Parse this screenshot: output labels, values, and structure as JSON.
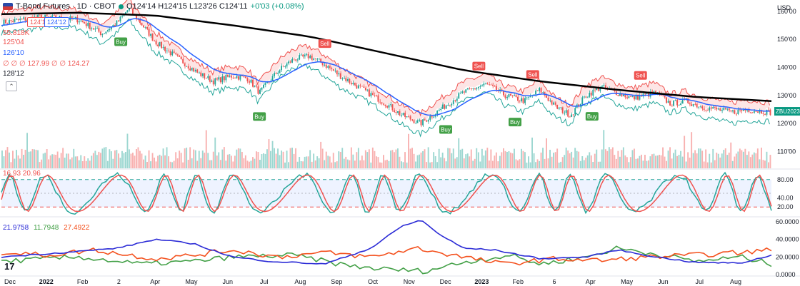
{
  "header": {
    "symbol": "T-Bond Futures · 1D · CBOT",
    "ohlc": "O124'14 H124'15 L123'26 C124'11",
    "change": "+0'03 (+0.08%)",
    "bid_label": "124'11",
    "ask_label": "124'12"
  },
  "legend": {
    "volume": "55.818K",
    "line1": "125'04",
    "line2": "126'10",
    "ichimoku": "∅ ∅ ∅ 127.99 ∅ ∅ 124.27",
    "line3": "128'12"
  },
  "stoch_legend": "16.93 20.96",
  "dmi_legend": [
    "21.9758",
    "11.7948",
    "27.4922"
  ],
  "colors": {
    "up": "#26a69a",
    "down": "#ef5350",
    "sma": "#000000",
    "ema": "#2962ff",
    "trail": "#ef5350",
    "support": "#26a69a",
    "buy": "#43a047",
    "sell": "#ef5350",
    "dmi_plus": "#43a047",
    "dmi_minus": "#f4511e",
    "adx": "#2a2ad6"
  },
  "chart_data": {
    "type": "candlestick",
    "main": {
      "currency": "USD",
      "y_ticks": [
        "160'00",
        "150'00",
        "140'00",
        "130'00",
        "120'00",
        "110'00"
      ],
      "ylim": [
        104,
        162
      ],
      "symbol_tag": "ZBU2023",
      "last_value": 124.34,
      "price_path": [
        [
          0,
          156
        ],
        [
          0.05,
          158
        ],
        [
          0.1,
          157
        ],
        [
          0.13,
          152
        ],
        [
          0.15,
          156
        ],
        [
          0.165,
          161
        ],
        [
          0.18,
          156
        ],
        [
          0.2,
          149
        ],
        [
          0.23,
          143
        ],
        [
          0.255,
          138
        ],
        [
          0.275,
          135
        ],
        [
          0.3,
          137
        ],
        [
          0.32,
          136
        ],
        [
          0.335,
          131
        ],
        [
          0.36,
          139
        ],
        [
          0.38,
          143
        ],
        [
          0.4,
          144
        ],
        [
          0.42,
          141
        ],
        [
          0.44,
          137
        ],
        [
          0.47,
          132
        ],
        [
          0.5,
          127
        ],
        [
          0.52,
          123
        ],
        [
          0.545,
          120
        ],
        [
          0.57,
          125
        ],
        [
          0.6,
          131
        ],
        [
          0.63,
          134
        ],
        [
          0.655,
          130
        ],
        [
          0.68,
          128
        ],
        [
          0.7,
          132
        ],
        [
          0.72,
          126
        ],
        [
          0.74,
          123
        ],
        [
          0.76,
          130
        ],
        [
          0.78,
          133
        ],
        [
          0.8,
          131
        ],
        [
          0.82,
          129
        ],
        [
          0.85,
          131
        ],
        [
          0.87,
          127
        ],
        [
          0.89,
          128
        ],
        [
          0.91,
          126
        ],
        [
          0.93,
          125
        ],
        [
          0.95,
          124
        ],
        [
          0.97,
          125
        ],
        [
          1,
          124
        ]
      ],
      "sma200_path": [
        [
          0,
          159
        ],
        [
          0.1,
          159.5
        ],
        [
          0.2,
          158.5
        ],
        [
          0.3,
          155
        ],
        [
          0.4,
          151
        ],
        [
          0.5,
          145
        ],
        [
          0.6,
          139
        ],
        [
          0.7,
          135
        ],
        [
          0.8,
          132
        ],
        [
          0.9,
          129.5
        ],
        [
          1,
          128
        ]
      ],
      "buy_signals": [
        0.155,
        0.335,
        0.577,
        0.667,
        0.767
      ],
      "sell_signals": [
        0.17,
        0.42,
        0.62,
        0.69,
        0.83
      ]
    },
    "stochastic": {
      "y_ticks": [
        "80.00",
        "40.00",
        "20.00"
      ],
      "ylim": [
        0,
        100
      ],
      "upper_band": 80,
      "lower_band": 20
    },
    "dmi": {
      "y_ticks": [
        "60.0000",
        "40.0000",
        "20.0000",
        "0.0000"
      ],
      "ylim": [
        0,
        64
      ],
      "adx_path": [
        [
          0,
          20
        ],
        [
          0.08,
          25
        ],
        [
          0.15,
          30
        ],
        [
          0.2,
          40
        ],
        [
          0.25,
          35
        ],
        [
          0.3,
          20
        ],
        [
          0.35,
          15
        ],
        [
          0.42,
          12
        ],
        [
          0.48,
          30
        ],
        [
          0.52,
          55
        ],
        [
          0.545,
          62
        ],
        [
          0.57,
          45
        ],
        [
          0.6,
          30
        ],
        [
          0.64,
          28
        ],
        [
          0.7,
          18
        ],
        [
          0.76,
          20
        ],
        [
          0.8,
          28
        ],
        [
          0.85,
          20
        ],
        [
          0.9,
          14
        ],
        [
          0.96,
          13
        ],
        [
          1,
          22
        ]
      ],
      "plus_path": [
        [
          0,
          15
        ],
        [
          0.1,
          20
        ],
        [
          0.18,
          12
        ],
        [
          0.25,
          15
        ],
        [
          0.3,
          20
        ],
        [
          0.38,
          22
        ],
        [
          0.45,
          10
        ],
        [
          0.5,
          6
        ],
        [
          0.55,
          4
        ],
        [
          0.6,
          14
        ],
        [
          0.66,
          22
        ],
        [
          0.7,
          12
        ],
        [
          0.76,
          20
        ],
        [
          0.8,
          30
        ],
        [
          0.86,
          22
        ],
        [
          0.9,
          15
        ],
        [
          0.96,
          20
        ],
        [
          1,
          12
        ]
      ],
      "minus_path": [
        [
          0,
          25
        ],
        [
          0.06,
          22
        ],
        [
          0.12,
          28
        ],
        [
          0.2,
          18
        ],
        [
          0.25,
          22
        ],
        [
          0.3,
          28
        ],
        [
          0.36,
          20
        ],
        [
          0.42,
          25
        ],
        [
          0.48,
          20
        ],
        [
          0.54,
          30
        ],
        [
          0.6,
          20
        ],
        [
          0.65,
          12
        ],
        [
          0.72,
          18
        ],
        [
          0.78,
          16
        ],
        [
          0.84,
          20
        ],
        [
          0.9,
          22
        ],
        [
          0.96,
          25
        ],
        [
          1,
          28
        ]
      ]
    },
    "x_ticks": [
      "Dec",
      "2022",
      "Feb",
      "2",
      "Apr",
      "May",
      "Jun",
      "Jul",
      "Aug",
      "Sep",
      "Oct",
      "Nov",
      "Dec",
      "2023",
      "Feb",
      "6",
      "Apr",
      "May",
      "Jun",
      "Jul",
      "Aug"
    ],
    "x_bold": [
      "2022",
      "2023"
    ]
  }
}
